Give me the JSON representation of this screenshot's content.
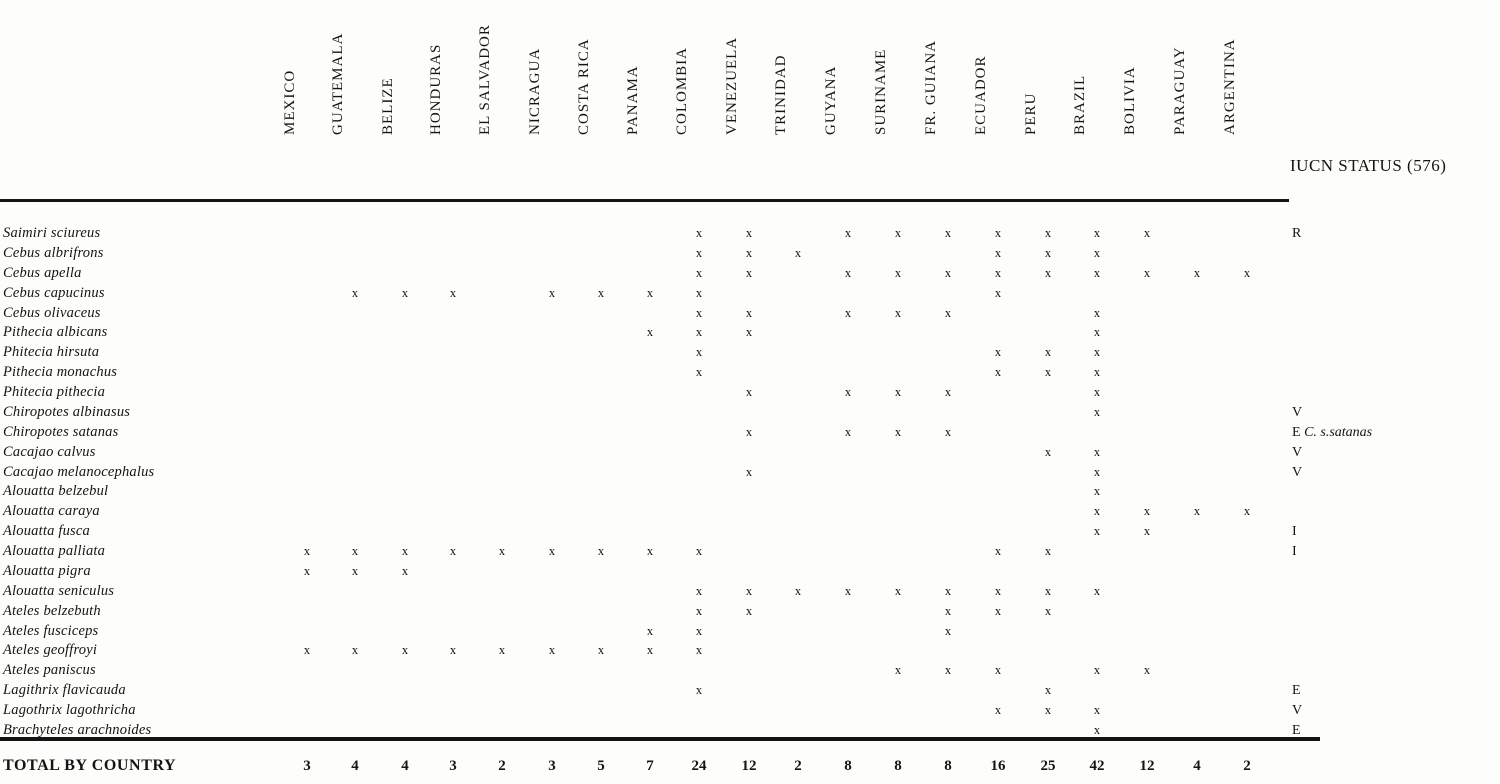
{
  "table": {
    "iucn_header": "IUCN STATUS (576)",
    "total_label": "TOTAL BY COUNTRY",
    "mark": "x",
    "countries": [
      "MEXICO",
      "GUATEMALA",
      "BELIZE",
      "HONDURAS",
      "EL SALVADOR",
      "NICRAGUA",
      "COSTA RICA",
      "PANAMA",
      "COLOMBIA",
      "VENEZUELA",
      "TRINIDAD",
      "GUYANA",
      "SURINAME",
      "FR. GUIANA",
      "ECUADOR",
      "PERU",
      "BRAZIL",
      "BOLIVIA",
      "PARAGUAY",
      "ARGENTINA"
    ],
    "totals": [
      "3",
      "4",
      "4",
      "3",
      "2",
      "3",
      "5",
      "7",
      "24",
      "12",
      "2",
      "8",
      "8",
      "8",
      "16",
      "25",
      "42",
      "12",
      "4",
      "2"
    ],
    "rows": [
      {
        "species": "Saimiri sciureus",
        "marks": [
          8,
          9,
          11,
          12,
          13,
          14,
          15,
          16,
          17
        ],
        "iucn": "R",
        "iucn_note": ""
      },
      {
        "species": "Cebus albrifrons",
        "marks": [
          8,
          9,
          10,
          14,
          15,
          16
        ],
        "iucn": "",
        "iucn_note": ""
      },
      {
        "species": "Cebus apella",
        "marks": [
          8,
          9,
          11,
          12,
          13,
          14,
          15,
          16,
          17,
          18,
          19
        ],
        "iucn": "",
        "iucn_note": ""
      },
      {
        "species": "Cebus capucinus",
        "marks": [
          1,
          2,
          3,
          5,
          6,
          7,
          8,
          14
        ],
        "iucn": "",
        "iucn_note": ""
      },
      {
        "species": "Cebus olivaceus",
        "marks": [
          8,
          9,
          11,
          12,
          13,
          16
        ],
        "iucn": "",
        "iucn_note": ""
      },
      {
        "species": "Pithecia albicans",
        "marks": [
          7,
          8,
          9,
          16
        ],
        "iucn": "",
        "iucn_note": ""
      },
      {
        "species": "Phitecia hirsuta",
        "marks": [
          8,
          14,
          15,
          16
        ],
        "iucn": "",
        "iucn_note": ""
      },
      {
        "species": "Pithecia monachus",
        "marks": [
          8,
          14,
          15,
          16
        ],
        "iucn": "",
        "iucn_note": ""
      },
      {
        "species": "Phitecia pithecia",
        "marks": [
          9,
          11,
          12,
          13,
          16
        ],
        "iucn": "",
        "iucn_note": ""
      },
      {
        "species": "Chiropotes albinasus",
        "marks": [
          16
        ],
        "iucn": "V",
        "iucn_note": ""
      },
      {
        "species": "Chiropotes satanas",
        "marks": [
          9,
          11,
          12,
          13
        ],
        "iucn": "E",
        "iucn_note": "C. s.satanas"
      },
      {
        "species": "Cacajao calvus",
        "marks": [
          15,
          16
        ],
        "iucn": "V",
        "iucn_note": ""
      },
      {
        "species": "Cacajao melanocephalus",
        "marks": [
          9,
          16
        ],
        "iucn": "V",
        "iucn_note": ""
      },
      {
        "species": "Alouatta belzebul",
        "marks": [
          16
        ],
        "iucn": "",
        "iucn_note": ""
      },
      {
        "species": "Alouatta caraya",
        "marks": [
          16,
          17,
          18,
          19
        ],
        "iucn": "",
        "iucn_note": ""
      },
      {
        "species": "Alouatta fusca",
        "marks": [
          16,
          17
        ],
        "iucn": "I",
        "iucn_note": ""
      },
      {
        "species": "Alouatta palliata",
        "marks": [
          0,
          1,
          2,
          3,
          4,
          5,
          6,
          7,
          8,
          14,
          15
        ],
        "iucn": "I",
        "iucn_note": ""
      },
      {
        "species": "Alouatta pigra",
        "marks": [
          0,
          1,
          2
        ],
        "iucn": "",
        "iucn_note": ""
      },
      {
        "species": "Alouatta seniculus",
        "marks": [
          8,
          9,
          10,
          11,
          12,
          13,
          14,
          15,
          16
        ],
        "iucn": "",
        "iucn_note": ""
      },
      {
        "species": "Ateles belzebuth",
        "marks": [
          8,
          9,
          13,
          14,
          15
        ],
        "iucn": "",
        "iucn_note": ""
      },
      {
        "species": "Ateles fusciceps",
        "marks": [
          7,
          8,
          13
        ],
        "iucn": "",
        "iucn_note": ""
      },
      {
        "species": "Ateles geoffroyi",
        "marks": [
          0,
          1,
          2,
          3,
          4,
          5,
          6,
          7,
          8
        ],
        "iucn": "",
        "iucn_note": ""
      },
      {
        "species": "Ateles paniscus",
        "marks": [
          12,
          13,
          14,
          16,
          17
        ],
        "iucn": "",
        "iucn_note": ""
      },
      {
        "species": "Lagithrix flavicauda",
        "marks": [
          8,
          15
        ],
        "iucn": "E",
        "iucn_note": ""
      },
      {
        "species": "Lagothrix lagothricha",
        "marks": [
          14,
          15,
          16
        ],
        "iucn": "V",
        "iucn_note": ""
      },
      {
        "species": "Brachyteles arachnoides",
        "marks": [
          16
        ],
        "iucn": "E",
        "iucn_note": ""
      }
    ]
  }
}
